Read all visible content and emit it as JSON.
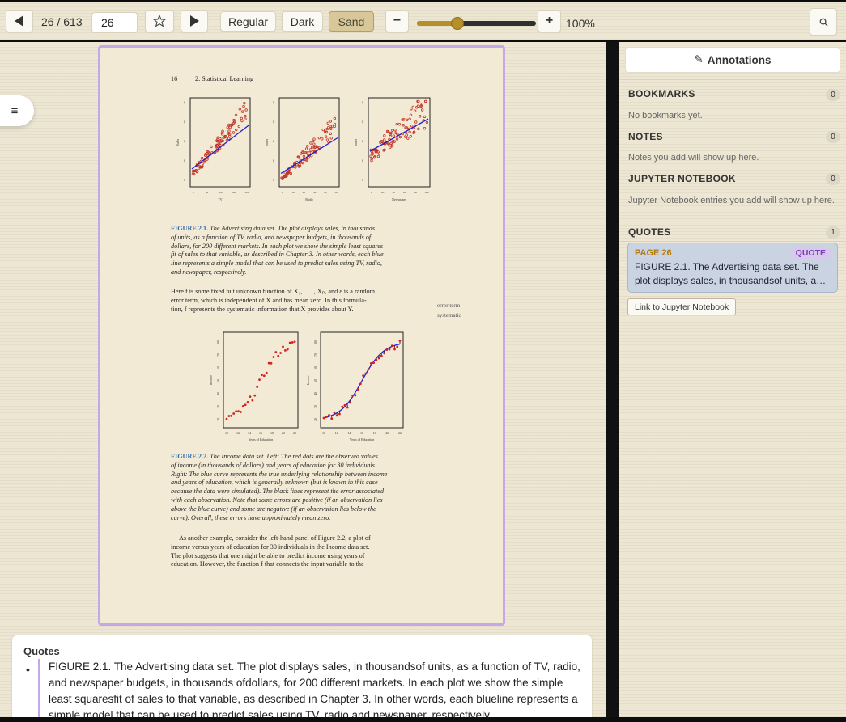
{
  "toolbar": {
    "page_indicator": "26 / 613",
    "page_input_value": "26",
    "themes": [
      "Regular",
      "Dark",
      "Sand"
    ],
    "active_theme": "Sand",
    "zoom_level": 100,
    "zoom_display": "100%",
    "zoom_fraction": 0.34
  },
  "page": {
    "running_head_number": "16",
    "running_head_title": "2. Statistical Learning",
    "fig1": {
      "panels": [
        {
          "xlabel": "TV",
          "ylabel": "Sales",
          "xticks": [
            "0",
            "50",
            "100",
            "200",
            "300"
          ]
        },
        {
          "xlabel": "Radio",
          "ylabel": "Sales",
          "xticks": [
            "0",
            "10",
            "20",
            "30",
            "40",
            "50"
          ]
        },
        {
          "xlabel": "Newspaper",
          "ylabel": "Sales",
          "xticks": [
            "0",
            "20",
            "40",
            "60",
            "80",
            "100"
          ]
        }
      ],
      "yticks": [
        "5",
        "10",
        "15",
        "20",
        "25"
      ]
    },
    "caption1_label": "FIGURE 2.1.",
    "caption1_lines": [
      "The Advertising data set. The plot displays sales, in thousands",
      "of units, as a function of TV, radio, and newspaper budgets, in thousands of",
      "dollars, for 200 different markets. In each plot we show the simple least squares",
      "fit of sales to that variable, as described in Chapter 3. In other words, each blue",
      "line represents a simple model that can be used to predict sales using TV, radio,",
      "and newspaper, respectively."
    ],
    "body1_lines": [
      "Here f is some fixed but unknown function of X₁, . . . , Xₚ, and ε is a random",
      "error term, which is independent of X and has mean zero. In this formula-",
      "tion, f represents the systematic information that X provides about Y."
    ],
    "margin_notes": [
      "error term",
      "systematic"
    ],
    "fig2": {
      "panels": [
        {
          "xlabel": "Years of Education",
          "ylabel": "Income"
        },
        {
          "xlabel": "Years of Education",
          "ylabel": "Income"
        }
      ],
      "xticks": [
        "10",
        "12",
        "14",
        "16",
        "18",
        "20",
        "22"
      ],
      "yticks": [
        "20",
        "30",
        "40",
        "50",
        "60",
        "70",
        "80"
      ]
    },
    "caption2_label": "FIGURE 2.2.",
    "caption2_lines": [
      "The Income data set. Left: The red dots are the observed values",
      "of income (in thousands of dollars) and years of education for 30 individuals.",
      "Right: The blue curve represents the true underlying relationship between income",
      "and years of education, which is generally unknown (but is known in this case",
      "because the data were simulated). The black lines represent the error associated",
      "with each observation. Note that some errors are positive (if an observation lies",
      "above the blue curve) and some are negative (if an observation lies below the",
      "curve). Overall, these errors have approximately mean zero."
    ],
    "body2_lines": [
      "As another example, consider the left-hand panel of Figure 2.2, a plot of",
      "income versus years of education for 30 individuals in the Income data set.",
      "The plot suggests that one might be able to predict income using years of",
      "education. However, the function f that connects the input variable to the"
    ]
  },
  "quotes_panel": {
    "title": "Quotes",
    "bullet": "•",
    "text": "FIGURE 2.1. The Advertising data set. The plot displays sales, in thousandsof units, as a function of TV, radio, and newspaper budgets, in thousands ofdollars, for 200 different markets. In each plot we show the simple least squaresfit of sales to that variable, as described in Chapter 3. In other words, each blueline represents a simple model that can be used to predict sales using TV, radio and newspaper, respectively."
  },
  "sidebar": {
    "annotations_label": "Annotations",
    "sections": [
      {
        "title": "BOOKMARKS",
        "count": "0",
        "empty_text": "No bookmarks yet."
      },
      {
        "title": "NOTES",
        "count": "0",
        "empty_text": "Notes you add will show up here."
      },
      {
        "title": "JUPYTER NOTEBOOK",
        "count": "0",
        "empty_text": "Jupyter Notebook entries you add will show up here."
      },
      {
        "title": "QUOTES",
        "count": "1",
        "empty_text": ""
      }
    ],
    "quote_card": {
      "page": "PAGE 26",
      "tag": "QUOTE",
      "text": "FIGURE 2.1. The Advertising data set. The plot displays sales, in thousandsof units, a…"
    },
    "link_jupyter_label": "Link to Jupyter Notebook"
  },
  "colors": {
    "accent_gold": "#b58f2a",
    "page_border": "#c6a8ea",
    "caption_blue": "#2f6fb0",
    "code_red": "#b23a2a",
    "quote_card_bg": "#c9d3e2"
  }
}
